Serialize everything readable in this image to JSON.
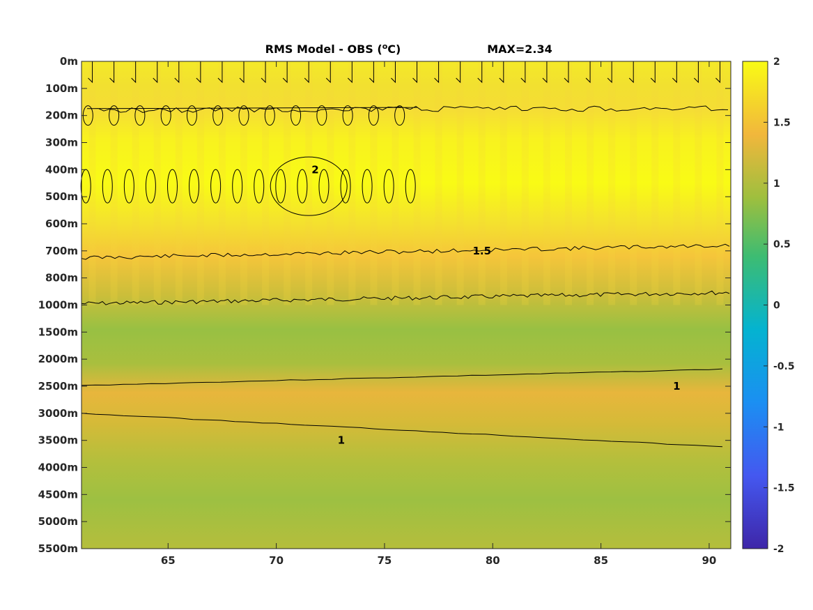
{
  "chart_data": {
    "type": "heatmap",
    "title": "RMS Model - OBS (",
    "title_unit_sup": "o",
    "title_unit_end": "C)",
    "max_label": "MAX=2.34",
    "colormap": "parula",
    "x": {
      "ticks": [
        65,
        70,
        75,
        80,
        85,
        90
      ],
      "range": [
        61,
        91
      ]
    },
    "y": {
      "tick_labels": [
        "0m",
        "100m",
        "200m",
        "300m",
        "400m",
        "500m",
        "600m",
        "700m",
        "800m",
        "1000m",
        "1500m",
        "2000m",
        "2500m",
        "3000m",
        "3500m",
        "4000m",
        "4500m",
        "5000m",
        "5500m"
      ]
    },
    "colorbar": {
      "ticks": [
        2,
        1.5,
        1,
        0.5,
        0,
        -0.5,
        -1,
        -1.5,
        -2
      ],
      "range": [
        -2,
        2
      ]
    },
    "depth_profile": [
      {
        "d": "0m",
        "v": 1.9
      },
      {
        "d": "100m",
        "v": 1.85
      },
      {
        "d": "200m",
        "v": 1.7
      },
      {
        "d": "300m",
        "v": 1.8
      },
      {
        "d": "400m",
        "v": 1.9
      },
      {
        "d": "500m",
        "v": 2.0
      },
      {
        "d": "600m",
        "v": 1.85
      },
      {
        "d": "700m",
        "v": 1.55
      },
      {
        "d": "800m",
        "v": 1.35
      },
      {
        "d": "1000m",
        "v": 1.0
      },
      {
        "d": "1500m",
        "v": 0.8
      },
      {
        "d": "2000m",
        "v": 0.95
      },
      {
        "d": "2500m",
        "v": 1.25
      },
      {
        "d": "3000m",
        "v": 1.1
      },
      {
        "d": "3500m",
        "v": 0.95
      },
      {
        "d": "4000m",
        "v": 0.85
      },
      {
        "d": "4500m",
        "v": 0.8
      },
      {
        "d": "5000m",
        "v": 0.85
      },
      {
        "d": "5500m",
        "v": 0.95
      }
    ],
    "contour_labels": [
      {
        "text": "1.5",
        "x": 79.5,
        "d": "700m"
      },
      {
        "text": "1",
        "x": 73,
        "d": "3500m"
      },
      {
        "text": "1",
        "x": 88.5,
        "d": "2500m"
      },
      {
        "text": "2",
        "x": 71.8,
        "d": "400m"
      }
    ]
  }
}
